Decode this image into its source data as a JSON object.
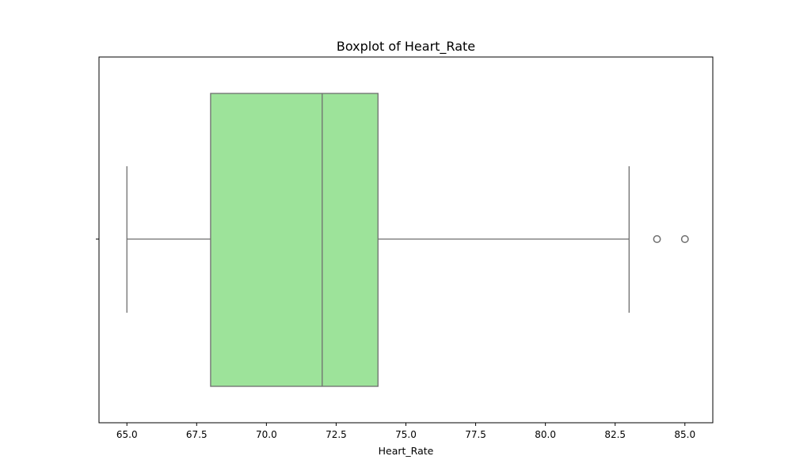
{
  "chart_data": {
    "type": "boxplot",
    "title": "Boxplot of Heart_Rate",
    "xlabel": "Heart_Rate",
    "ylabel": "",
    "xlim": [
      64.0,
      86.0
    ],
    "x_ticks": [
      "65.0",
      "67.5",
      "70.0",
      "72.5",
      "75.0",
      "77.5",
      "80.0",
      "82.5",
      "85.0"
    ],
    "grid": false,
    "legend": "none",
    "box": {
      "whisker_low": 65,
      "q1": 68,
      "median": 72,
      "q3": 74,
      "whisker_high": 83
    },
    "outliers": [
      84,
      85
    ],
    "colors": {
      "box_fill": "#9de39a",
      "line": "#6e6e6e",
      "frame": "#000000"
    }
  }
}
